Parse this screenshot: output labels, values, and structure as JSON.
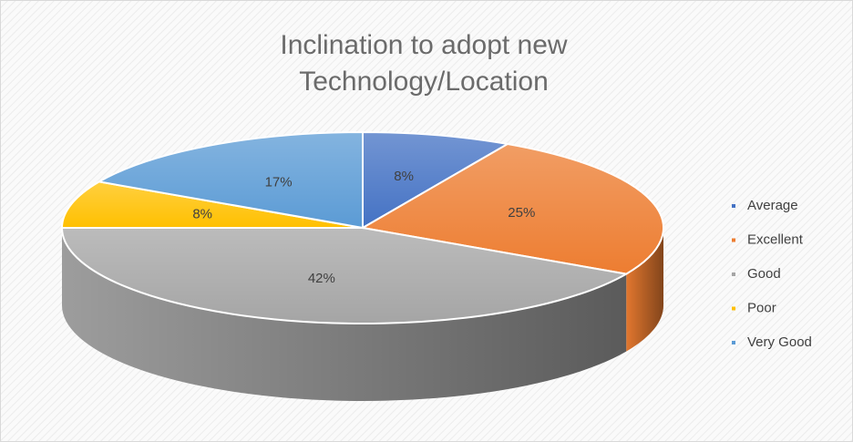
{
  "chart_data": {
    "type": "pie",
    "title": "Inclination to adopt new Technology/Location",
    "categories": [
      "Average",
      "Excellent",
      "Good",
      "Poor",
      "Very Good"
    ],
    "values": [
      8,
      25,
      42,
      8,
      17
    ],
    "value_labels": [
      "8%",
      "25%",
      "42%",
      "8%",
      "17%"
    ],
    "colors": [
      "#4472c4",
      "#ed7d31",
      "#a5a5a5",
      "#ffc000",
      "#5b9bd5"
    ],
    "legend": "right"
  }
}
